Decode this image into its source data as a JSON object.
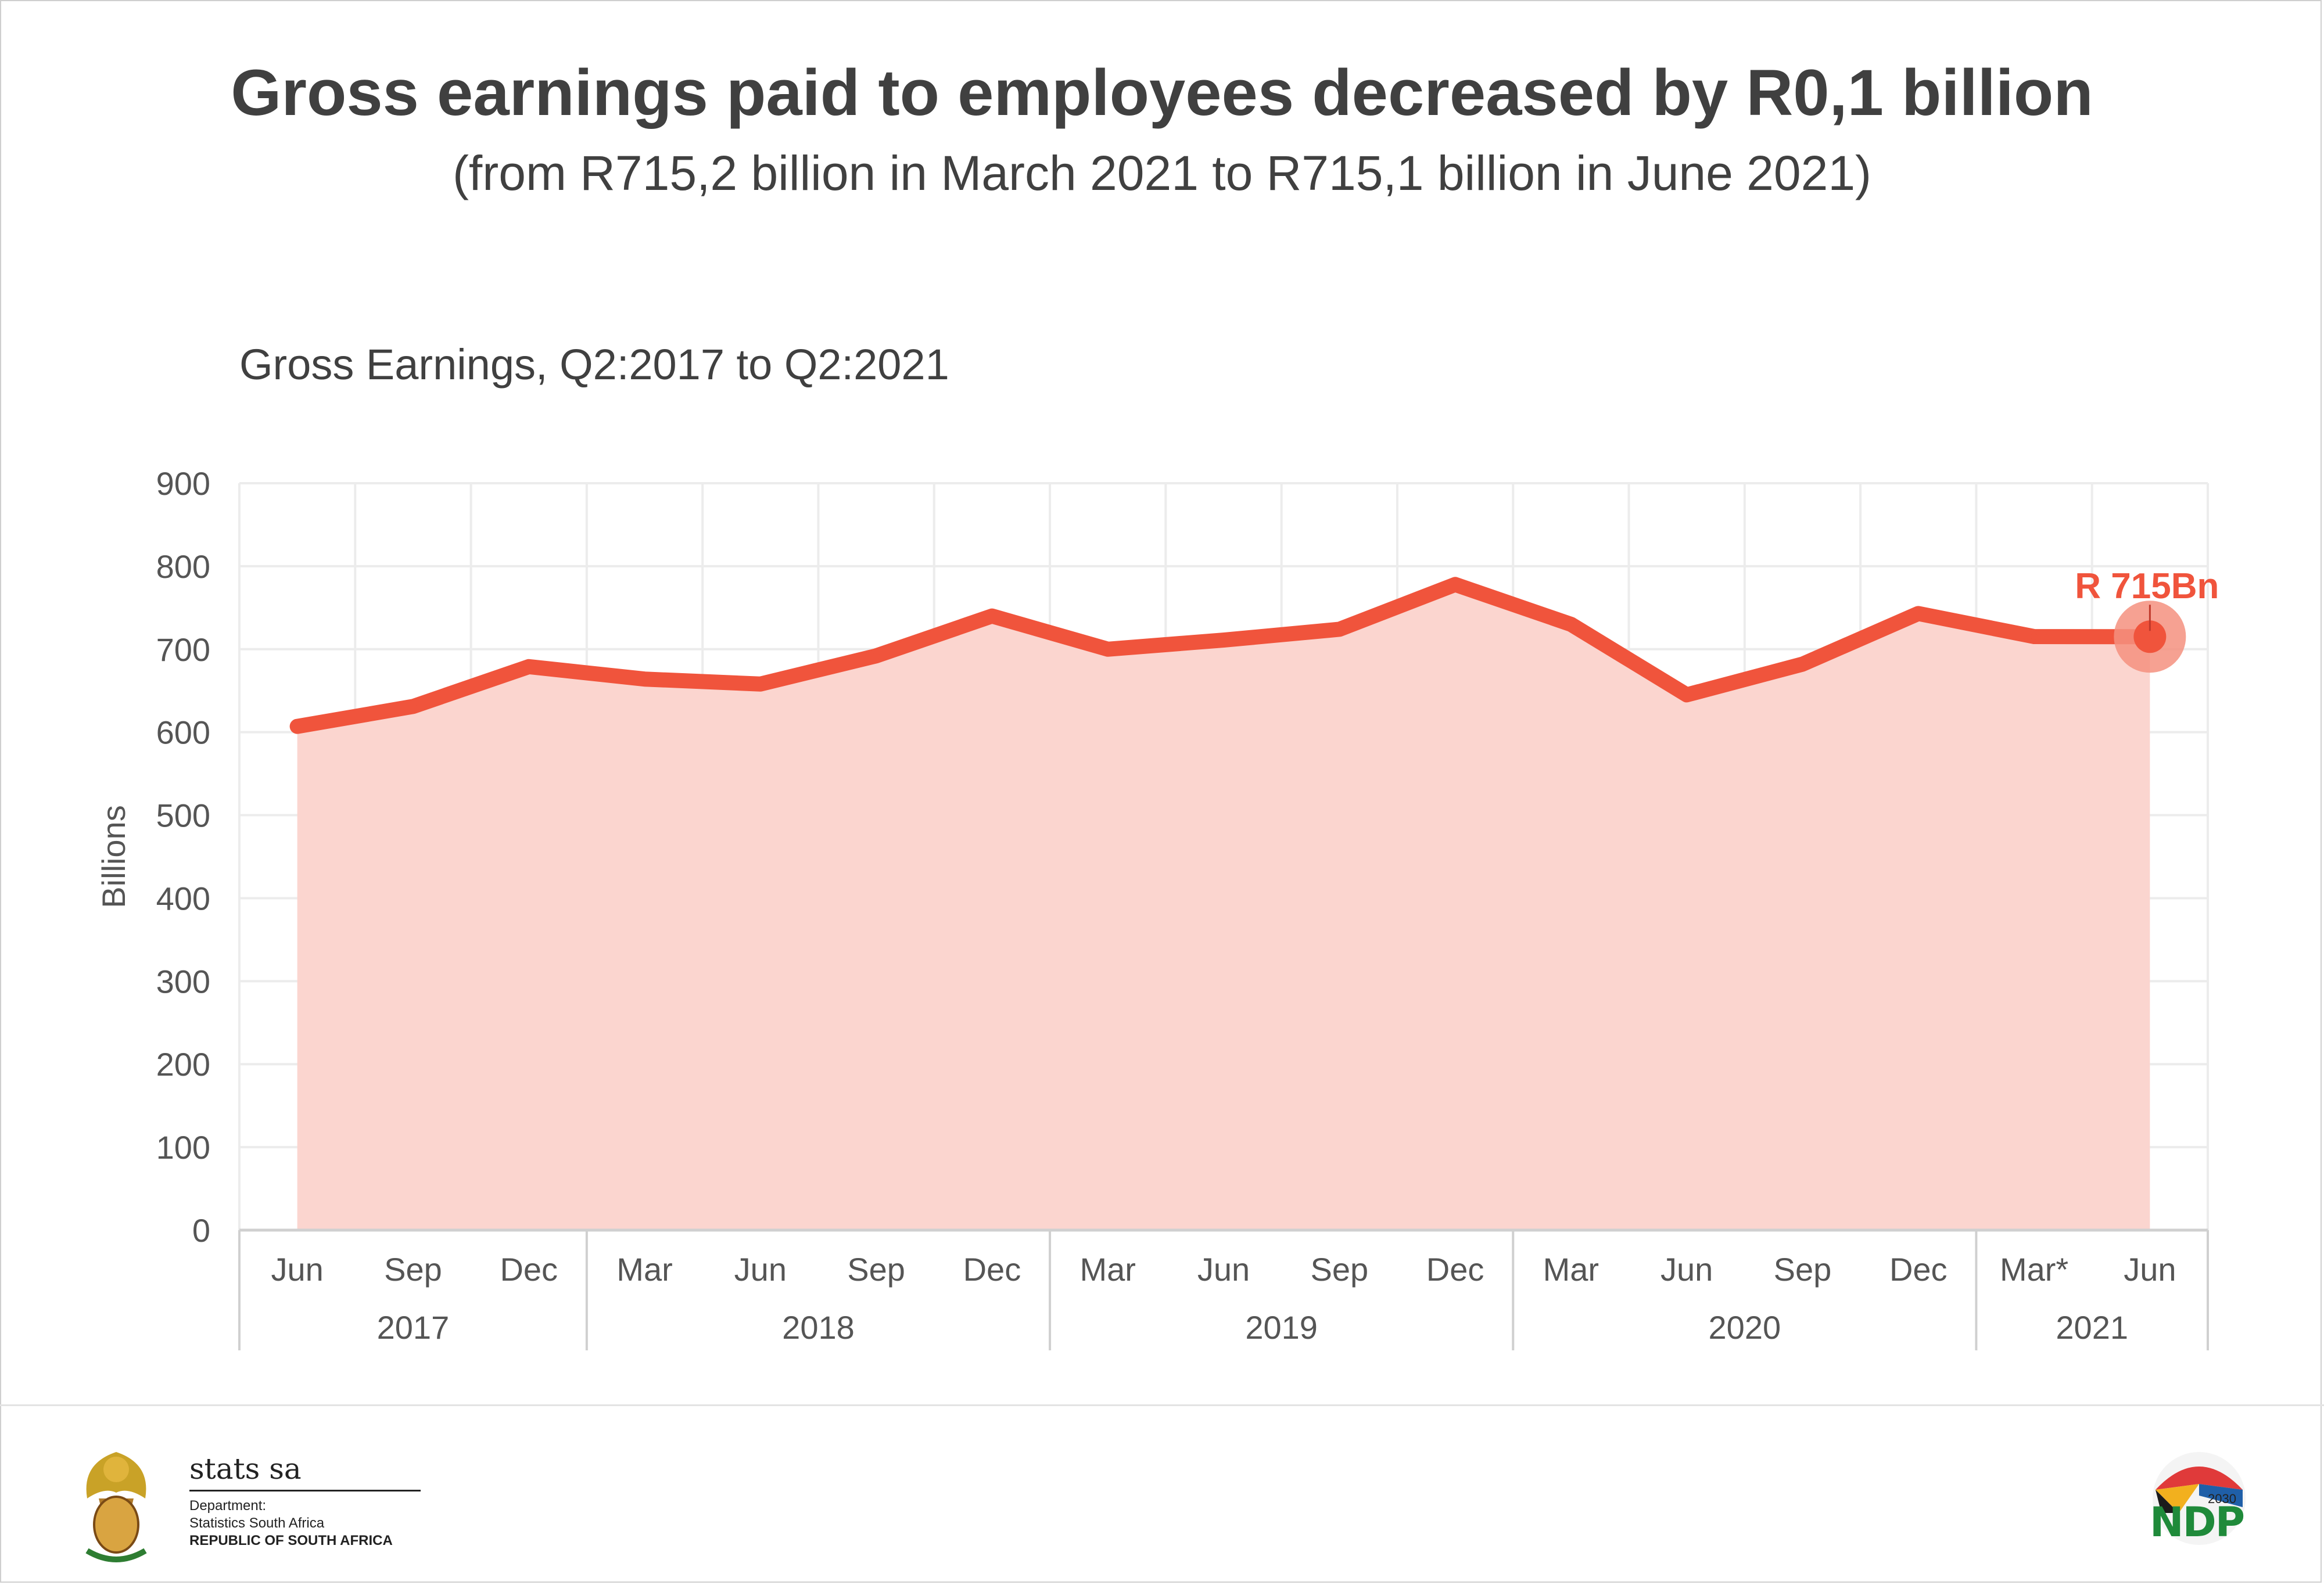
{
  "header": {
    "title": "Gross earnings paid to employees decreased by R0,1 billion",
    "subtitle": "(from R715,2 billion in March 2021 to R715,1 billion in June 2021)"
  },
  "chart_data": {
    "type": "area",
    "title": "Gross Earnings, Q2:2017 to Q2:2021",
    "ylabel": "Billions",
    "xlabel": "",
    "ylim": [
      0,
      900
    ],
    "y_ticks": [
      0,
      100,
      200,
      300,
      400,
      500,
      600,
      700,
      800,
      900
    ],
    "grid": true,
    "categories": [
      "Jun",
      "Sep",
      "Dec",
      "Mar",
      "Jun",
      "Sep",
      "Dec",
      "Mar",
      "Jun",
      "Sep",
      "Dec",
      "Mar",
      "Jun",
      "Sep",
      "Dec",
      "Mar*",
      "Jun"
    ],
    "year_groups": [
      {
        "label": "2017",
        "count": 3
      },
      {
        "label": "2018",
        "count": 4
      },
      {
        "label": "2019",
        "count": 4
      },
      {
        "label": "2020",
        "count": 4
      },
      {
        "label": "2021",
        "count": 2
      }
    ],
    "series": [
      {
        "values": [
          607,
          631,
          679,
          664,
          658,
          692,
          740,
          700,
          711,
          724,
          778,
          730,
          645,
          682,
          743,
          715.2,
          715.1
        ]
      }
    ],
    "annotation": {
      "text": "R 715Bn",
      "index": 16
    },
    "colors": {
      "line": "#f0543c",
      "fill": "#fbd5cf",
      "marker_halo": "#f5907f",
      "grid": "#ececec",
      "axis_text": "#555555"
    }
  },
  "footer": {
    "brand": "stats sa",
    "dept_line1": "Department:",
    "dept_line2": "Statistics South Africa",
    "dept_line3": "REPUBLIC OF SOUTH AFRICA",
    "ndp_logo": "NDP",
    "ndp_year": "2030",
    "coat_of_arms_icon": "coat-of-arms-icon"
  }
}
